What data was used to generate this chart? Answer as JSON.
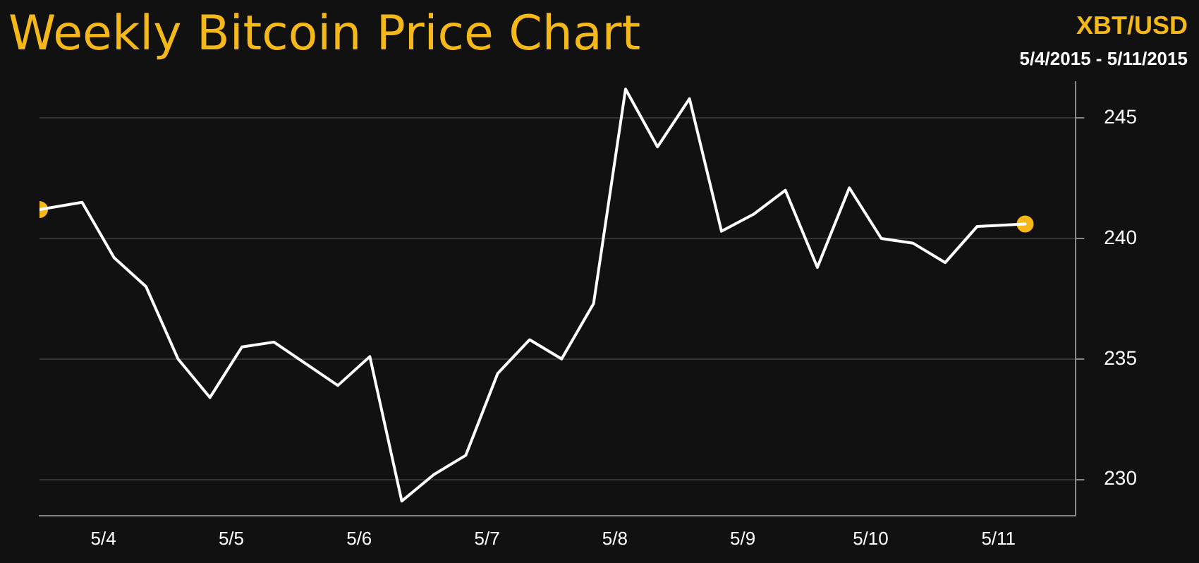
{
  "chart_data": {
    "type": "line",
    "title": "Weekly Bitcoin Price Chart",
    "subtitle": "XBT/USD",
    "annotations": [
      "5/4/2015 - 5/11/2015"
    ],
    "x": [
      "2015-05-03T12:00",
      "2015-05-03T20:00",
      "2015-05-04T02:00",
      "2015-05-04T08:00",
      "2015-05-04T14:00",
      "2015-05-04T20:00",
      "2015-05-05T02:00",
      "2015-05-05T08:00",
      "2015-05-05T20:00",
      "2015-05-06T02:00",
      "2015-05-06T08:00",
      "2015-05-06T14:00",
      "2015-05-06T20:00",
      "2015-05-07T02:00",
      "2015-05-07T08:00",
      "2015-05-07T14:00",
      "2015-05-07T20:00",
      "2015-05-08T02:00",
      "2015-05-08T08:00",
      "2015-05-08T14:00",
      "2015-05-08T20:00",
      "2015-05-09T02:00",
      "2015-05-09T08:00",
      "2015-05-09T14:00",
      "2015-05-09T20:00",
      "2015-05-10T02:00",
      "2015-05-10T08:00",
      "2015-05-10T14:00",
      "2015-05-10T20:00",
      "2015-05-11T05:00"
    ],
    "series": [
      {
        "color": "#ffffff",
        "values": [
          241.2,
          241.5,
          239.2,
          238.0,
          235.0,
          233.4,
          235.5,
          235.7,
          233.9,
          235.1,
          229.1,
          230.2,
          231.0,
          234.4,
          235.8,
          235.0,
          237.3,
          246.2,
          243.8,
          245.8,
          240.3,
          241.0,
          242.0,
          238.8,
          242.1,
          240.0,
          239.8,
          239.0,
          240.5,
          240.6
        ]
      },
      {
        "type": "scatter",
        "color": "#f5b819",
        "marker": "circle",
        "x": [
          "2015-05-03T12:00",
          "2015-05-11T05:00"
        ],
        "values": [
          241.2,
          240.6
        ]
      }
    ],
    "xlim": [
      "2015-05-03T12:00",
      "2015-05-11T14:30"
    ],
    "xticks": [
      {
        "value": "2015-05-04",
        "label": "5/4"
      },
      {
        "value": "2015-05-05",
        "label": "5/5"
      },
      {
        "value": "2015-05-06",
        "label": "5/6"
      },
      {
        "value": "2015-05-07",
        "label": "5/7"
      },
      {
        "value": "2015-05-08",
        "label": "5/8"
      },
      {
        "value": "2015-05-09",
        "label": "5/9"
      },
      {
        "value": "2015-05-10",
        "label": "5/10"
      },
      {
        "value": "2015-05-11",
        "label": "5/11"
      }
    ],
    "ylim": [
      228.5,
      246.5
    ],
    "yticks": [
      230,
      235,
      240,
      245
    ],
    "grid": "y",
    "legend": false,
    "marker": "none",
    "line_style": "solid"
  }
}
